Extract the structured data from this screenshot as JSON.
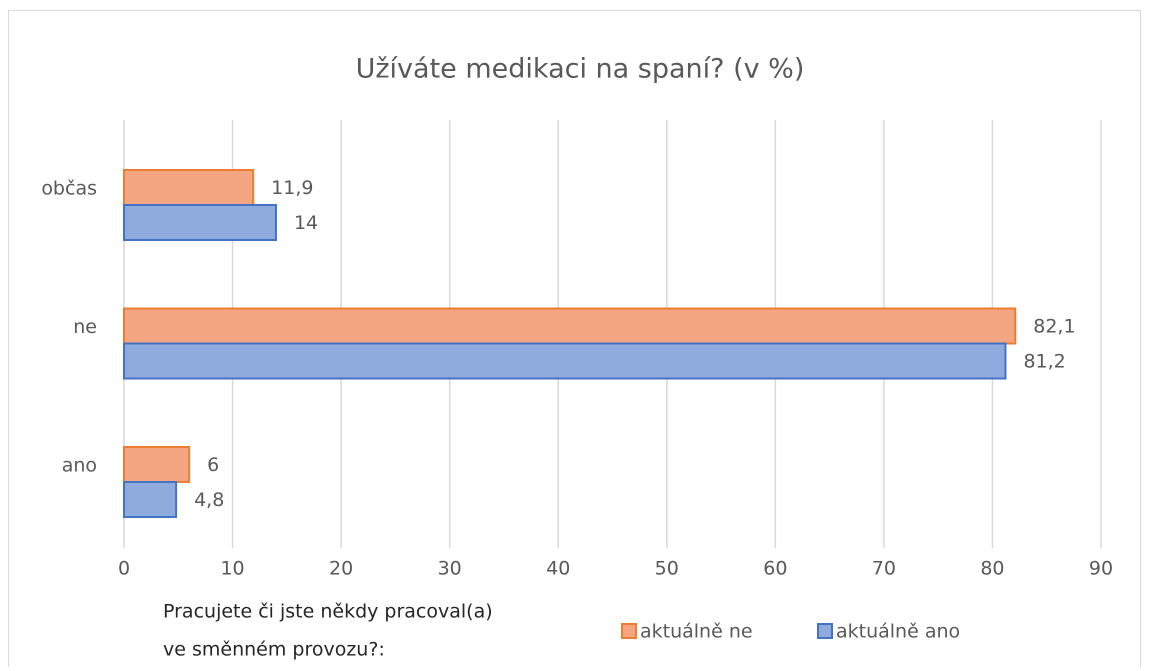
{
  "chart_data": {
    "type": "hbar",
    "title": "Užíváte medikaci na spaní? (v %)",
    "categories": [
      "občas",
      "ne",
      "ano"
    ],
    "series": [
      {
        "name": "aktuálně ne",
        "color": "#f4a582",
        "edge_color": "#ed7d31",
        "values": [
          11.9,
          82.1,
          6
        ],
        "value_labels": [
          "11,9",
          "82,1",
          "6"
        ]
      },
      {
        "name": "aktuálně ano",
        "color": "#8faadc",
        "edge_color": "#4472c4",
        "values": [
          14,
          81.2,
          4.8
        ],
        "value_labels": [
          "14",
          "81,2",
          "4,8"
        ]
      }
    ],
    "xlim": [
      0,
      90
    ],
    "xticks": [
      0,
      10,
      20,
      30,
      40,
      50,
      60,
      70,
      80,
      90
    ],
    "grid": true,
    "legend_title": [
      "Pracujete či jste někdy pracoval(a)",
      "ve směnném provozu?:"
    ],
    "legend_position": "bottom"
  }
}
